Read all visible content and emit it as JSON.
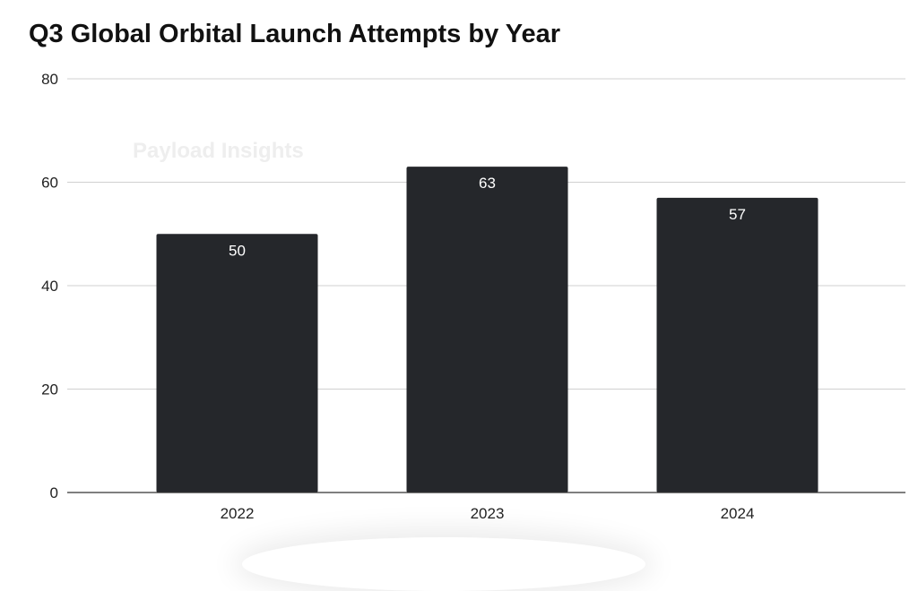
{
  "chart_data": {
    "type": "bar",
    "title": "Q3 Global Orbital Launch Attempts by Year",
    "watermark": "Payload Insights",
    "categories": [
      "2022",
      "2023",
      "2024"
    ],
    "values": [
      50,
      63,
      57
    ],
    "data_labels": [
      "50",
      "63",
      "57"
    ],
    "xlabel": "",
    "ylabel": "",
    "ylim": [
      0,
      80
    ],
    "yticks": [
      "0",
      "20",
      "40",
      "60",
      "80"
    ],
    "grid": true,
    "legend": "none",
    "colors": {
      "bar": "#25272b",
      "grid": "#d0d0d0",
      "label": "#ffffff"
    }
  }
}
